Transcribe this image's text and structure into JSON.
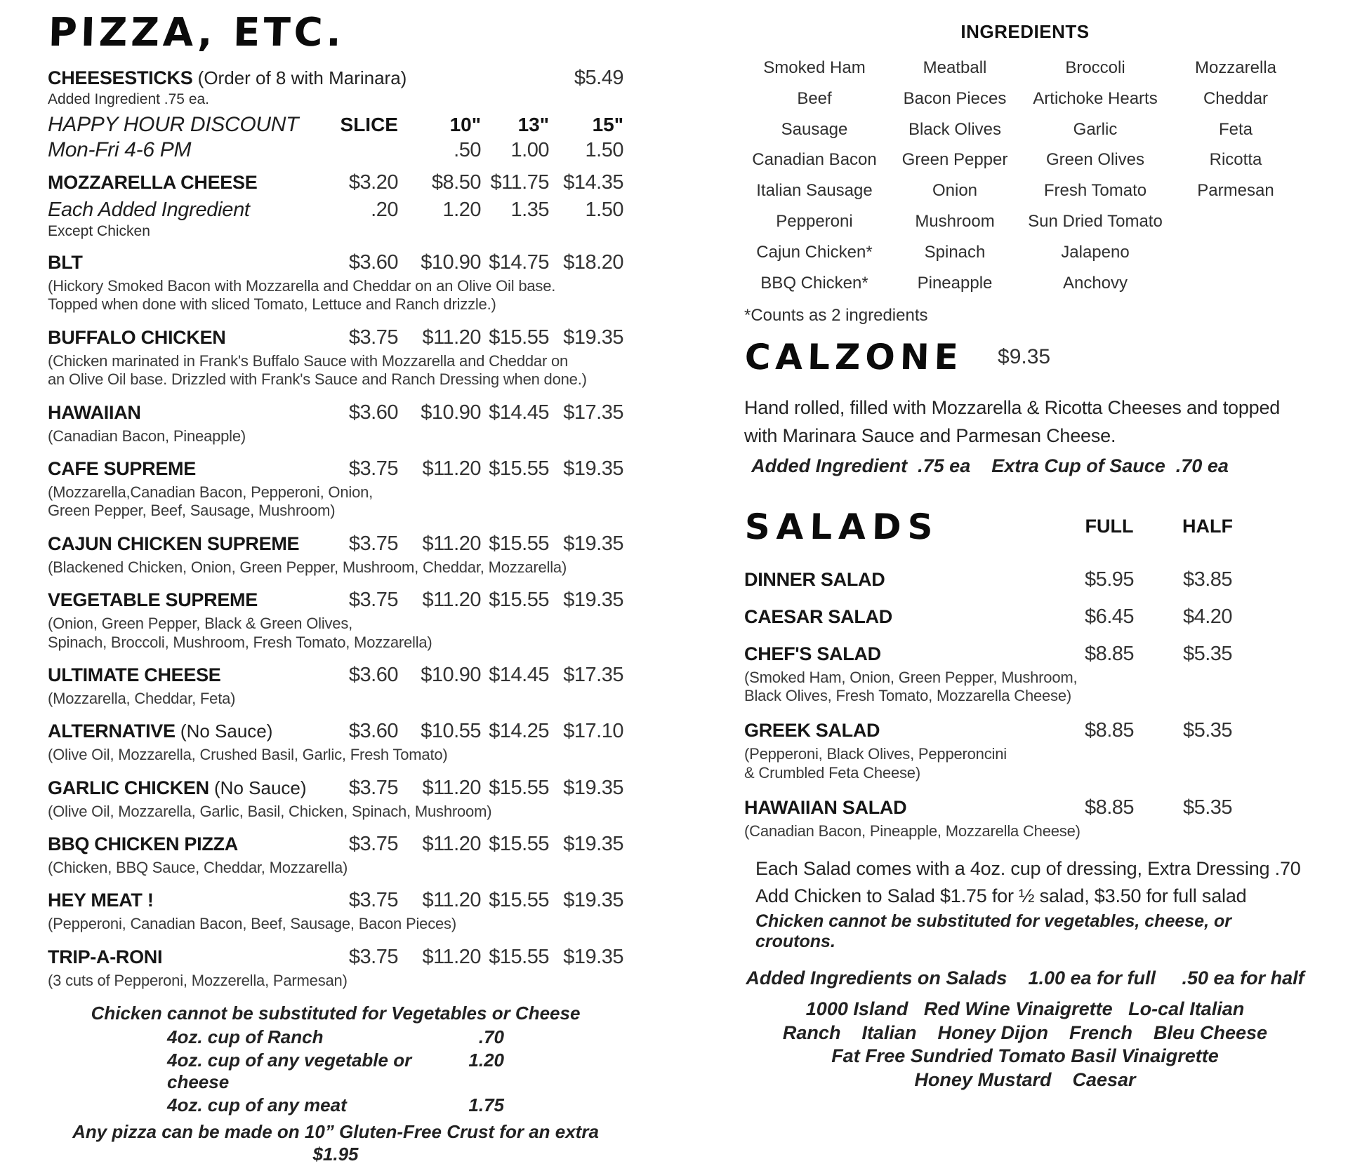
{
  "left": {
    "title": "PIZZA, ETC.",
    "cheesesticks": {
      "name": "CHEESESTICKS",
      "suffix": " (Order of 8 with Marinara)",
      "price": "$5.49",
      "note": "Added Ingredient .75 ea."
    },
    "happy_hour": {
      "line1": "HAPPY HOUR DISCOUNT",
      "line2": "Mon-Fri 4-6 PM",
      "col_headers": [
        "SLICE",
        "10\"",
        "13\"",
        "15\""
      ],
      "discounts": [
        ".50",
        "1.00",
        "1.50"
      ]
    },
    "mozzarella": {
      "name": "MOZZARELLA CHEESE",
      "slice": "$3.20",
      "p10": "$8.50",
      "p13": "$11.75",
      "p15": "$14.35"
    },
    "each_added": {
      "name": "Each Added Ingredient",
      "slice": ".20",
      "p10": "1.20",
      "p13": "1.35",
      "p15": "1.50",
      "note": "Except Chicken"
    },
    "items": [
      {
        "name": "BLT",
        "suffix": "",
        "slice": "$3.60",
        "p10": "$10.90",
        "p13": "$14.75",
        "p15": "$18.20",
        "desc": "(Hickory Smoked Bacon with Mozzarella and Cheddar on an Olive Oil base.\nTopped when done with sliced Tomato, Lettuce and Ranch drizzle.)"
      },
      {
        "name": "BUFFALO CHICKEN",
        "suffix": "",
        "slice": "$3.75",
        "p10": "$11.20",
        "p13": "$15.55",
        "p15": "$19.35",
        "desc": "(Chicken marinated in Frank's Buffalo Sauce with Mozzarella and Cheddar on\nan Olive Oil base. Drizzled with Frank's Sauce and Ranch Dressing when done.)"
      },
      {
        "name": "HAWAIIAN",
        "suffix": "",
        "slice": "$3.60",
        "p10": "$10.90",
        "p13": "$14.45",
        "p15": "$17.35",
        "desc": "(Canadian Bacon, Pineapple)"
      },
      {
        "name": "CAFE SUPREME",
        "suffix": "",
        "slice": "$3.75",
        "p10": "$11.20",
        "p13": "$15.55",
        "p15": "$19.35",
        "desc": "(Mozzarella,Canadian Bacon, Pepperoni, Onion,\nGreen Pepper, Beef, Sausage, Mushroom)"
      },
      {
        "name": "CAJUN CHICKEN SUPREME",
        "suffix": "",
        "slice": "$3.75",
        "p10": "$11.20",
        "p13": "$15.55",
        "p15": "$19.35",
        "desc": "(Blackened Chicken, Onion, Green Pepper, Mushroom, Cheddar, Mozzarella)"
      },
      {
        "name": "VEGETABLE SUPREME",
        "suffix": "",
        "slice": "$3.75",
        "p10": "$11.20",
        "p13": "$15.55",
        "p15": "$19.35",
        "desc": "(Onion, Green Pepper, Black & Green Olives,\nSpinach, Broccoli, Mushroom, Fresh Tomato, Mozzarella)"
      },
      {
        "name": "ULTIMATE CHEESE",
        "suffix": "",
        "slice": "$3.60",
        "p10": "$10.90",
        "p13": "$14.45",
        "p15": "$17.35",
        "desc": "(Mozzarella, Cheddar, Feta)"
      },
      {
        "name": "ALTERNATIVE",
        "suffix": "  (No Sauce)",
        "slice": "$3.60",
        "p10": "$10.55",
        "p13": "$14.25",
        "p15": "$17.10",
        "desc": "(Olive Oil, Mozzarella, Crushed Basil, Garlic, Fresh Tomato)"
      },
      {
        "name": "GARLIC CHICKEN",
        "suffix": " (No Sauce)",
        "slice": "$3.75",
        "p10": "$11.20",
        "p13": "$15.55",
        "p15": "$19.35",
        "desc": "(Olive Oil, Mozzarella, Garlic, Basil, Chicken, Spinach, Mushroom)"
      },
      {
        "name": "BBQ CHICKEN PIZZA",
        "suffix": "",
        "slice": "$3.75",
        "p10": "$11.20",
        "p13": "$15.55",
        "p15": "$19.35",
        "desc": "(Chicken, BBQ Sauce, Cheddar, Mozzarella)"
      },
      {
        "name": "HEY MEAT !",
        "suffix": "",
        "slice": "$3.75",
        "p10": "$11.20",
        "p13": "$15.55",
        "p15": "$19.35",
        "desc": "(Pepperoni, Canadian Bacon, Beef, Sausage, Bacon Pieces)"
      },
      {
        "name": "TRIP-A-RONI",
        "suffix": "",
        "slice": "$3.75",
        "p10": "$11.20",
        "p13": "$15.55",
        "p15": "$19.35",
        "desc": "(3 cuts of Pepperoni, Mozzerella, Parmesan)"
      }
    ],
    "footer": {
      "substitution": "Chicken cannot be substituted for Vegetables or Cheese",
      "cups": [
        {
          "label": "4oz. cup of Ranch",
          "price": ".70"
        },
        {
          "label": "4oz. cup of any vegetable or cheese",
          "price": "1.20"
        },
        {
          "label": "4oz. cup of any meat",
          "price": "1.75"
        }
      ],
      "gluten": "Any pizza can be made on 10” Gluten-Free Crust for an extra $1.95"
    }
  },
  "right": {
    "ingredients": {
      "title": "INGREDIENTS",
      "rows": [
        [
          "Smoked Ham",
          "Meatball",
          "Broccoli",
          "Mozzarella"
        ],
        [
          "Beef",
          "Bacon Pieces",
          "Artichoke Hearts",
          "Cheddar"
        ],
        [
          "Sausage",
          "Black Olives",
          "Garlic",
          "Feta"
        ],
        [
          "Canadian Bacon",
          "Green Pepper",
          "Green Olives",
          "Ricotta"
        ],
        [
          "Italian Sausage",
          "Onion",
          "Fresh Tomato",
          "Parmesan"
        ],
        [
          "Pepperoni",
          "Mushroom",
          "Sun Dried Tomato",
          ""
        ],
        [
          "Cajun Chicken*",
          "Spinach",
          "Jalapeno",
          ""
        ],
        [
          "BBQ Chicken*",
          "Pineapple",
          "Anchovy",
          ""
        ]
      ],
      "footnote": "*Counts as 2 ingredients"
    },
    "calzone": {
      "title": "CALZONE",
      "price": "$9.35",
      "description": "Hand rolled, filled with Mozzarella & Ricotta Cheeses and topped with Marinara Sauce and Parmesan Cheese.",
      "subline": "Added Ingredient  .75 ea    Extra Cup of Sauce  .70 ea"
    },
    "salads": {
      "title": "SALADS",
      "col_headers": [
        "FULL",
        "HALF"
      ],
      "items": [
        {
          "name": "DINNER SALAD",
          "full": "$5.95",
          "half": "$3.85",
          "desc": ""
        },
        {
          "name": "CAESAR SALAD",
          "full": "$6.45",
          "half": "$4.20",
          "desc": ""
        },
        {
          "name": "CHEF'S SALAD",
          "full": "$8.85",
          "half": "$5.35",
          "desc": "(Smoked Ham, Onion, Green Pepper, Mushroom,\nBlack Olives, Fresh Tomato, Mozzarella Cheese)"
        },
        {
          "name": "GREEK SALAD",
          "full": "$8.85",
          "half": "$5.35",
          "desc": "(Pepperoni, Black Olives, Pepperoncini\n& Crumbled Feta Cheese)"
        },
        {
          "name": "HAWAIIAN SALAD",
          "full": "$8.85",
          "half": "$5.35",
          "desc": "(Canadian Bacon, Pineapple, Mozzarella Cheese)"
        }
      ],
      "note_dressing": "Each Salad comes with a 4oz. cup of dressing, Extra Dressing .70",
      "note_chicken": "Add Chicken to Salad $1.75 for ½ salad, $3.50 for full salad",
      "note_substitution": "Chicken cannot be substituted for vegetables, cheese, or croutons.",
      "added_line": "Added Ingredients on Salads    1.00 ea for full     .50 ea for half",
      "dressings": [
        "1000 Island   Red Wine Vinaigrette   Lo-cal Italian",
        "Ranch    Italian    Honey Dijon    French    Bleu Cheese",
        "Fat Free Sundried Tomato Basil Vinaigrette",
        "Honey Mustard    Caesar"
      ]
    }
  }
}
